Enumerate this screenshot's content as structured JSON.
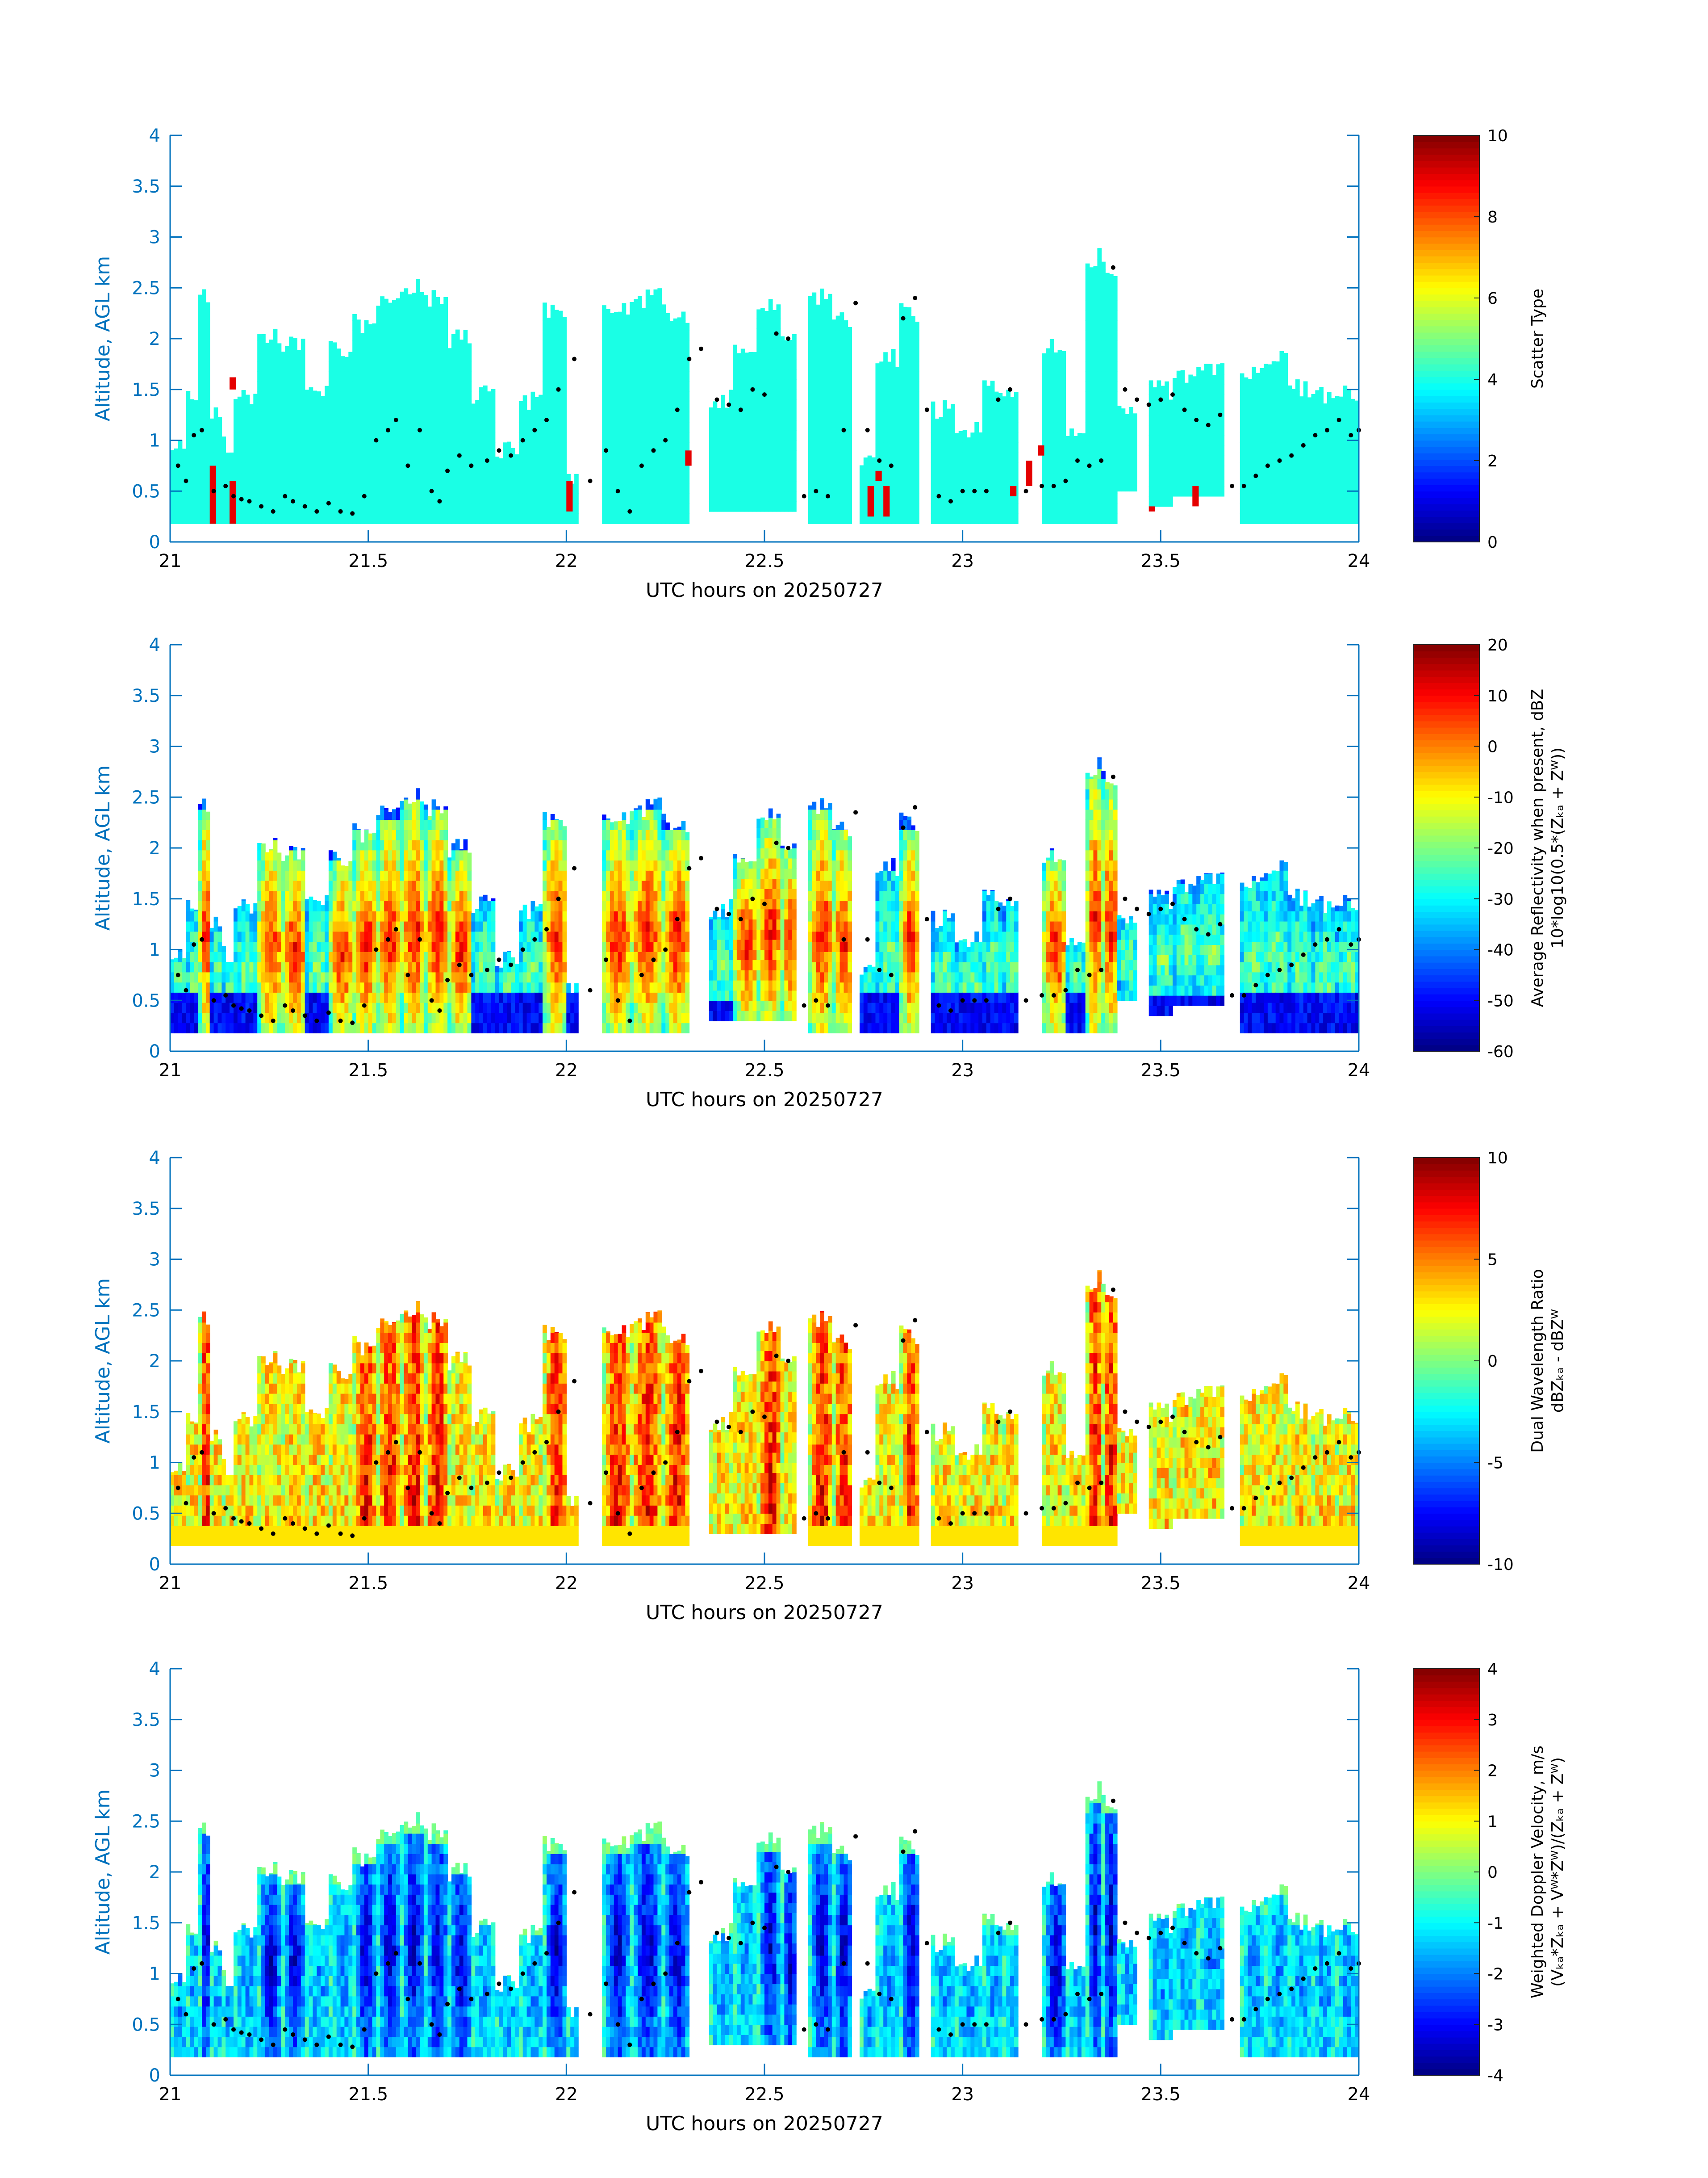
{
  "figure": {
    "background": "#ffffff",
    "axis_color": "#0072bd",
    "colormap": "jet"
  },
  "chart_data": [
    {
      "type": "heatmap",
      "id": "scatter-type",
      "title": "",
      "xlabel": "UTC hours on 20250727",
      "ylabel": "Altitude, AGL km",
      "xlim": [
        21,
        24
      ],
      "ylim": [
        0,
        4
      ],
      "xticks": [
        "21",
        "21.5",
        "22",
        "22.5",
        "23",
        "23.5",
        "24"
      ],
      "yticks": [
        "0",
        "0.5",
        "1",
        "1.5",
        "2",
        "2.5",
        "3",
        "3.5",
        "4"
      ],
      "colorbar": {
        "label": "Scatter Type",
        "label2": "",
        "range": [
          0,
          10
        ],
        "ticks": [
          "0",
          "2",
          "4",
          "6",
          "8",
          "10"
        ]
      },
      "dominant_value": 4,
      "field": "scatter",
      "grid": false
    },
    {
      "type": "heatmap",
      "id": "reflectivity",
      "title": "",
      "xlabel": "UTC hours on 20250727",
      "ylabel": "Altitude, AGL km",
      "xlim": [
        21,
        24
      ],
      "ylim": [
        0,
        4
      ],
      "xticks": [
        "21",
        "21.5",
        "22",
        "22.5",
        "23",
        "23.5",
        "24"
      ],
      "yticks": [
        "0",
        "0.5",
        "1",
        "1.5",
        "2",
        "2.5",
        "3",
        "3.5",
        "4"
      ],
      "colorbar": {
        "label": "Average Reflectivity when present, dBZ",
        "label2": "10*log10(0.5*(Zₖₐ + Zᵂ))",
        "range": [
          -60,
          20
        ],
        "ticks": [
          "-60",
          "-50",
          "-40",
          "-30",
          "-20",
          "-10",
          "0",
          "10",
          "20"
        ]
      },
      "field": "reflectivity",
      "grid": false
    },
    {
      "type": "heatmap",
      "id": "dual-wavelength-ratio",
      "title": "",
      "xlabel": "UTC hours on 20250727",
      "ylabel": "Altitude, AGL km",
      "xlim": [
        21,
        24
      ],
      "ylim": [
        0,
        4
      ],
      "xticks": [
        "21",
        "21.5",
        "22",
        "22.5",
        "23",
        "23.5",
        "24"
      ],
      "yticks": [
        "0",
        "0.5",
        "1",
        "1.5",
        "2",
        "2.5",
        "3",
        "3.5",
        "4"
      ],
      "colorbar": {
        "label": "Dual Wavelength Ratio",
        "label2": "dBZₖₐ - dBZᵂ",
        "range": [
          -10,
          10
        ],
        "ticks": [
          "-10",
          "-5",
          "0",
          "5",
          "10"
        ]
      },
      "field": "dwr",
      "grid": false
    },
    {
      "type": "heatmap",
      "id": "doppler-velocity",
      "title": "",
      "xlabel": "UTC hours on 20250727",
      "ylabel": "Altitude, AGL km",
      "xlim": [
        21,
        24
      ],
      "ylim": [
        0,
        4
      ],
      "xticks": [
        "21",
        "21.5",
        "22",
        "22.5",
        "23",
        "23.5",
        "24"
      ],
      "yticks": [
        "0",
        "0.5",
        "1",
        "1.5",
        "2",
        "2.5",
        "3",
        "3.5",
        "4"
      ],
      "colorbar": {
        "label": "Weighted Doppler Velocity, m/s",
        "label2": "(Vₖₐ*Zₖₐ + Vᵂ*Zᵂ)/(Zₖₐ + Zᵂ)",
        "range": [
          -4,
          4
        ],
        "ticks": [
          "-4",
          "-3",
          "-2",
          "-1",
          "0",
          "1",
          "2",
          "3",
          "4"
        ]
      },
      "field": "velocity",
      "grid": false
    }
  ],
  "cloud_columns": [
    {
      "t0": 21.0,
      "t1": 21.04,
      "top": 1.1,
      "base": 0.18
    },
    {
      "t0": 21.04,
      "t1": 21.07,
      "top": 1.5,
      "base": 0.18
    },
    {
      "t0": 21.07,
      "t1": 21.1,
      "top": 2.55,
      "base": 0.18
    },
    {
      "t0": 21.1,
      "t1": 21.13,
      "top": 1.35,
      "base": 0.18
    },
    {
      "t0": 21.13,
      "t1": 21.16,
      "top": 1.05,
      "base": 0.18
    },
    {
      "t0": 21.16,
      "t1": 21.22,
      "top": 1.55,
      "base": 0.18
    },
    {
      "t0": 21.22,
      "t1": 21.28,
      "top": 2.15,
      "base": 0.18
    },
    {
      "t0": 21.28,
      "t1": 21.34,
      "top": 2.05,
      "base": 0.18
    },
    {
      "t0": 21.34,
      "t1": 21.4,
      "top": 1.6,
      "base": 0.18
    },
    {
      "t0": 21.4,
      "t1": 21.46,
      "top": 2.0,
      "base": 0.18
    },
    {
      "t0": 21.46,
      "t1": 21.52,
      "top": 2.25,
      "base": 0.18
    },
    {
      "t0": 21.52,
      "t1": 21.58,
      "top": 2.45,
      "base": 0.18
    },
    {
      "t0": 21.58,
      "t1": 21.64,
      "top": 2.6,
      "base": 0.18
    },
    {
      "t0": 21.64,
      "t1": 21.7,
      "top": 2.5,
      "base": 0.18
    },
    {
      "t0": 21.7,
      "t1": 21.76,
      "top": 2.1,
      "base": 0.18
    },
    {
      "t0": 21.76,
      "t1": 21.82,
      "top": 1.55,
      "base": 0.18
    },
    {
      "t0": 21.82,
      "t1": 21.88,
      "top": 1.0,
      "base": 0.18
    },
    {
      "t0": 21.88,
      "t1": 21.94,
      "top": 1.5,
      "base": 0.18
    },
    {
      "t0": 21.94,
      "t1": 22.0,
      "top": 2.4,
      "base": 0.18
    },
    {
      "t0": 22.0,
      "t1": 22.03,
      "top": 0.75,
      "base": 0.18
    },
    {
      "t0": 22.09,
      "t1": 22.16,
      "top": 2.4,
      "base": 0.18
    },
    {
      "t0": 22.16,
      "t1": 22.24,
      "top": 2.5,
      "base": 0.18
    },
    {
      "t0": 22.24,
      "t1": 22.31,
      "top": 2.35,
      "base": 0.18
    },
    {
      "t0": 22.36,
      "t1": 22.42,
      "top": 1.5,
      "base": 0.3
    },
    {
      "t0": 22.42,
      "t1": 22.48,
      "top": 2.0,
      "base": 0.3
    },
    {
      "t0": 22.48,
      "t1": 22.54,
      "top": 2.4,
      "base": 0.3
    },
    {
      "t0": 22.54,
      "t1": 22.58,
      "top": 2.1,
      "base": 0.3
    },
    {
      "t0": 22.61,
      "t1": 22.67,
      "top": 2.5,
      "base": 0.18
    },
    {
      "t0": 22.67,
      "t1": 22.72,
      "top": 2.3,
      "base": 0.18
    },
    {
      "t0": 22.74,
      "t1": 22.78,
      "top": 0.9,
      "base": 0.18
    },
    {
      "t0": 22.78,
      "t1": 22.84,
      "top": 1.9,
      "base": 0.18
    },
    {
      "t0": 22.84,
      "t1": 22.89,
      "top": 2.35,
      "base": 0.18
    },
    {
      "t0": 22.92,
      "t1": 22.98,
      "top": 1.4,
      "base": 0.18
    },
    {
      "t0": 22.98,
      "t1": 23.05,
      "top": 1.2,
      "base": 0.18
    },
    {
      "t0": 23.05,
      "t1": 23.1,
      "top": 1.6,
      "base": 0.18
    },
    {
      "t0": 23.1,
      "t1": 23.14,
      "top": 1.5,
      "base": 0.18
    },
    {
      "t0": 23.2,
      "t1": 23.26,
      "top": 2.05,
      "base": 0.18
    },
    {
      "t0": 23.26,
      "t1": 23.31,
      "top": 1.2,
      "base": 0.18
    },
    {
      "t0": 23.31,
      "t1": 23.35,
      "top": 2.9,
      "base": 0.18
    },
    {
      "t0": 23.35,
      "t1": 23.39,
      "top": 2.8,
      "base": 0.18
    },
    {
      "t0": 23.39,
      "t1": 23.44,
      "top": 1.4,
      "base": 0.5
    },
    {
      "t0": 23.47,
      "t1": 23.53,
      "top": 1.6,
      "base": 0.35
    },
    {
      "t0": 23.53,
      "t1": 23.59,
      "top": 1.75,
      "base": 0.45
    },
    {
      "t0": 23.59,
      "t1": 23.66,
      "top": 1.8,
      "base": 0.45
    },
    {
      "t0": 23.7,
      "t1": 23.76,
      "top": 1.8,
      "base": 0.18
    },
    {
      "t0": 23.76,
      "t1": 23.82,
      "top": 1.9,
      "base": 0.18
    },
    {
      "t0": 23.82,
      "t1": 23.88,
      "top": 1.6,
      "base": 0.18
    },
    {
      "t0": 23.88,
      "t1": 23.94,
      "top": 1.55,
      "base": 0.18
    },
    {
      "t0": 23.94,
      "t1": 24.0,
      "top": 1.55,
      "base": 0.18
    }
  ],
  "cloud_base_points": [
    [
      21.02,
      0.75
    ],
    [
      21.04,
      0.6
    ],
    [
      21.06,
      1.05
    ],
    [
      21.08,
      1.1
    ],
    [
      21.11,
      0.5
    ],
    [
      21.14,
      0.55
    ],
    [
      21.16,
      0.45
    ],
    [
      21.18,
      0.42
    ],
    [
      21.2,
      0.4
    ],
    [
      21.23,
      0.35
    ],
    [
      21.26,
      0.3
    ],
    [
      21.29,
      0.45
    ],
    [
      21.31,
      0.4
    ],
    [
      21.34,
      0.35
    ],
    [
      21.37,
      0.3
    ],
    [
      21.4,
      0.38
    ],
    [
      21.43,
      0.3
    ],
    [
      21.46,
      0.28
    ],
    [
      21.49,
      0.45
    ],
    [
      21.52,
      1.0
    ],
    [
      21.55,
      1.1
    ],
    [
      21.57,
      1.2
    ],
    [
      21.6,
      0.75
    ],
    [
      21.63,
      1.1
    ],
    [
      21.66,
      0.5
    ],
    [
      21.68,
      0.4
    ],
    [
      21.7,
      0.7
    ],
    [
      21.73,
      0.85
    ],
    [
      21.76,
      0.75
    ],
    [
      21.8,
      0.8
    ],
    [
      21.83,
      0.9
    ],
    [
      21.86,
      0.85
    ],
    [
      21.89,
      1.0
    ],
    [
      21.92,
      1.1
    ],
    [
      21.95,
      1.2
    ],
    [
      21.98,
      1.5
    ],
    [
      22.02,
      1.8
    ],
    [
      22.06,
      0.6
    ],
    [
      22.1,
      0.9
    ],
    [
      22.13,
      0.5
    ],
    [
      22.16,
      0.3
    ],
    [
      22.19,
      0.75
    ],
    [
      22.22,
      0.9
    ],
    [
      22.25,
      1.0
    ],
    [
      22.28,
      1.3
    ],
    [
      22.31,
      1.8
    ],
    [
      22.34,
      1.9
    ],
    [
      22.38,
      1.4
    ],
    [
      22.41,
      1.35
    ],
    [
      22.44,
      1.3
    ],
    [
      22.47,
      1.5
    ],
    [
      22.5,
      1.45
    ],
    [
      22.53,
      2.05
    ],
    [
      22.56,
      2.0
    ],
    [
      22.6,
      0.45
    ],
    [
      22.63,
      0.5
    ],
    [
      22.66,
      0.45
    ],
    [
      22.7,
      1.1
    ],
    [
      22.73,
      2.35
    ],
    [
      22.76,
      1.1
    ],
    [
      22.79,
      0.8
    ],
    [
      22.82,
      0.75
    ],
    [
      22.85,
      2.2
    ],
    [
      22.88,
      2.4
    ],
    [
      22.91,
      1.3
    ],
    [
      22.94,
      0.45
    ],
    [
      22.97,
      0.4
    ],
    [
      23.0,
      0.5
    ],
    [
      23.03,
      0.5
    ],
    [
      23.06,
      0.5
    ],
    [
      23.09,
      1.4
    ],
    [
      23.12,
      1.5
    ],
    [
      23.16,
      0.5
    ],
    [
      23.2,
      0.55
    ],
    [
      23.23,
      0.55
    ],
    [
      23.26,
      0.6
    ],
    [
      23.29,
      0.8
    ],
    [
      23.32,
      0.75
    ],
    [
      23.35,
      0.8
    ],
    [
      23.38,
      2.7
    ],
    [
      23.41,
      1.5
    ],
    [
      23.44,
      1.4
    ],
    [
      23.47,
      1.35
    ],
    [
      23.5,
      1.4
    ],
    [
      23.53,
      1.45
    ],
    [
      23.56,
      1.3
    ],
    [
      23.59,
      1.2
    ],
    [
      23.62,
      1.15
    ],
    [
      23.65,
      1.25
    ],
    [
      23.68,
      0.55
    ],
    [
      23.71,
      0.55
    ],
    [
      23.74,
      0.65
    ],
    [
      23.77,
      0.75
    ],
    [
      23.8,
      0.8
    ],
    [
      23.83,
      0.85
    ],
    [
      23.86,
      0.95
    ],
    [
      23.89,
      1.05
    ],
    [
      23.92,
      1.1
    ],
    [
      23.95,
      1.2
    ],
    [
      23.98,
      1.05
    ],
    [
      24.0,
      1.1
    ]
  ]
}
